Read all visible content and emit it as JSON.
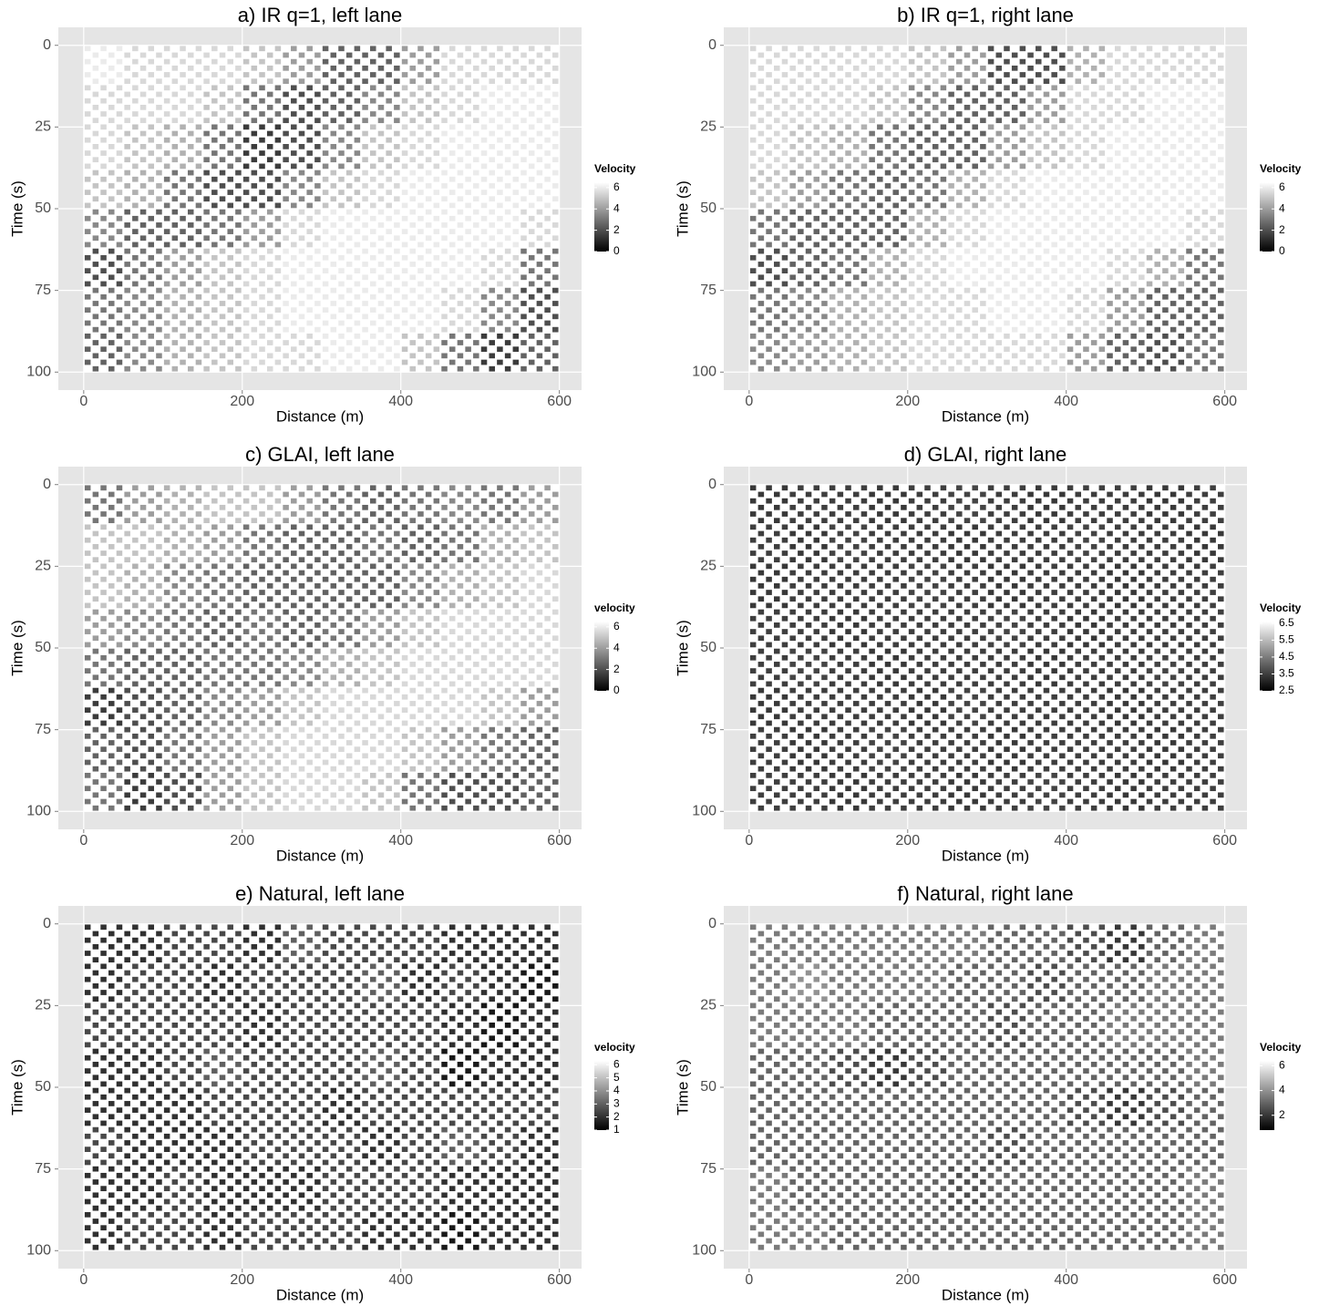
{
  "chart_data": [
    {
      "type": "heatmap",
      "title": "a) IR q=1, left lane",
      "xlabel": "Distance (m)",
      "ylabel": "Time (s)",
      "xlim": [
        -32,
        628
      ],
      "ylim": [
        -5.5,
        105.5
      ],
      "y_reversed": true,
      "xticks": [
        0,
        200,
        400,
        600
      ],
      "yticks": [
        0,
        25,
        50,
        75,
        100
      ],
      "grid": true,
      "x": [
        25,
        75,
        125,
        175,
        225,
        275,
        325,
        375,
        425,
        475,
        525,
        575
      ],
      "y": [
        6.25,
        18.75,
        31.25,
        43.75,
        56.25,
        68.75,
        81.25,
        93.75
      ],
      "values": [
        [
          6,
          5.5,
          5.5,
          5.5,
          5,
          4,
          2.5,
          2.5,
          4,
          5.5,
          5.5,
          5.5
        ],
        [
          5.5,
          5.5,
          5.5,
          5,
          3,
          2,
          2.5,
          3.5,
          5,
          5.5,
          6,
          6
        ],
        [
          5.5,
          5,
          4.5,
          3,
          1.5,
          2,
          3.5,
          5,
          5.5,
          6,
          6,
          6
        ],
        [
          5,
          4.5,
          3,
          2,
          2,
          3.5,
          5,
          5.5,
          6,
          6,
          6,
          6
        ],
        [
          3.5,
          2.5,
          2.5,
          3,
          4,
          5.5,
          6,
          6,
          6,
          6,
          6,
          5.5
        ],
        [
          2,
          3,
          4,
          5,
          5.5,
          6,
          6,
          6,
          6,
          6,
          5.5,
          3
        ],
        [
          3,
          3.5,
          4.5,
          5,
          5.5,
          6,
          6,
          6,
          6,
          5.5,
          3.5,
          2
        ],
        [
          2.5,
          3.5,
          4.5,
          5,
          5.5,
          5.5,
          6,
          6,
          5,
          3,
          1.5,
          2.5
        ]
      ],
      "legend_title": "Velocity",
      "legend_ticks": [
        0,
        2,
        4,
        6
      ],
      "color_range": [
        0,
        6.5
      ],
      "colors": [
        "#000000",
        "#ffffff"
      ]
    },
    {
      "type": "heatmap",
      "title": "b) IR q=1, right lane",
      "xlabel": "Distance (m)",
      "ylabel": "Time (s)",
      "xlim": [
        -32,
        628
      ],
      "ylim": [
        -5.5,
        105.5
      ],
      "y_reversed": true,
      "xticks": [
        0,
        200,
        400,
        600
      ],
      "yticks": [
        0,
        25,
        50,
        75,
        100
      ],
      "grid": true,
      "x": [
        25,
        75,
        125,
        175,
        225,
        275,
        325,
        375,
        425,
        475,
        525,
        575
      ],
      "y": [
        6.25,
        18.75,
        31.25,
        43.75,
        56.25,
        68.75,
        81.25,
        93.75
      ],
      "values": [
        [
          5.5,
          5.5,
          5.5,
          5.5,
          5,
          4,
          2,
          2,
          4.5,
          5.5,
          5.5,
          5.5
        ],
        [
          5.5,
          5.5,
          5.5,
          5,
          3.5,
          2.5,
          2.5,
          4,
          5.5,
          5.5,
          6,
          6
        ],
        [
          5.5,
          5,
          4.5,
          3,
          2.5,
          2.5,
          4,
          5,
          5.5,
          6,
          6,
          6
        ],
        [
          5,
          4,
          3,
          2.5,
          3,
          4.5,
          5.5,
          6,
          6,
          6,
          6,
          6
        ],
        [
          3,
          2.5,
          2.5,
          2.5,
          4.5,
          5.5,
          6,
          6,
          6,
          6,
          6,
          5.5
        ],
        [
          2,
          2.5,
          3,
          4.5,
          5.5,
          6,
          6,
          6,
          6,
          5.5,
          4.5,
          3
        ],
        [
          3,
          3.5,
          4.5,
          5,
          5.5,
          5.5,
          6,
          6,
          5.5,
          4,
          2.5,
          2.5
        ],
        [
          3.5,
          4,
          4.5,
          5,
          5.5,
          5.5,
          5.5,
          5.5,
          4,
          2.5,
          2,
          3
        ]
      ],
      "legend_title": "Velocity",
      "legend_ticks": [
        0,
        2,
        4,
        6
      ],
      "color_range": [
        0,
        6.5
      ],
      "colors": [
        "#000000",
        "#ffffff"
      ]
    },
    {
      "type": "heatmap",
      "title": "c) GLAI, left lane",
      "xlabel": "Distance (m)",
      "ylabel": "Time (s)",
      "xlim": [
        -32,
        628
      ],
      "ylim": [
        -5.5,
        105.5
      ],
      "y_reversed": true,
      "xticks": [
        0,
        200,
        400,
        600
      ],
      "yticks": [
        0,
        25,
        50,
        75,
        100
      ],
      "grid": true,
      "x": [
        25,
        75,
        125,
        175,
        225,
        275,
        325,
        375,
        425,
        475,
        525,
        575
      ],
      "y": [
        6.25,
        18.75,
        31.25,
        43.75,
        56.25,
        68.75,
        81.25,
        93.75
      ],
      "values": [
        [
          3,
          4,
          4.5,
          5,
          5,
          4,
          3,
          2.5,
          3,
          3.5,
          3,
          4
        ],
        [
          5,
          5,
          4.5,
          4,
          3,
          2.5,
          2.5,
          3,
          2.5,
          3,
          4.5,
          5
        ],
        [
          5,
          4.5,
          3.5,
          3,
          2.5,
          2.5,
          2.5,
          2.5,
          3.5,
          4.5,
          5,
          5.5
        ],
        [
          4,
          3.5,
          3,
          2.5,
          3,
          2.5,
          3,
          4,
          5,
          5.5,
          5.5,
          5.5
        ],
        [
          3,
          2.5,
          2.5,
          3,
          3,
          3.5,
          4.5,
          5,
          5.5,
          5.5,
          5.5,
          5.5
        ],
        [
          1.5,
          2,
          2.5,
          3.5,
          4,
          5,
          5.5,
          5.5,
          5.5,
          5.5,
          5,
          4
        ],
        [
          2.5,
          2,
          3,
          4,
          5,
          5.5,
          5.5,
          5.5,
          5,
          4,
          3,
          2.5
        ],
        [
          3,
          1.5,
          2,
          4,
          5,
          5.5,
          5.5,
          5,
          3,
          2,
          2,
          2.5
        ]
      ],
      "legend_title": "velocity",
      "legend_ticks": [
        0,
        2,
        4,
        6
      ],
      "color_range": [
        0,
        6.5
      ],
      "colors": [
        "#000000",
        "#ffffff"
      ]
    },
    {
      "type": "heatmap",
      "title": "d) GLAI, right lane",
      "xlabel": "Distance (m)",
      "ylabel": "Time (s)",
      "xlim": [
        -32,
        628
      ],
      "ylim": [
        -5.5,
        105.5
      ],
      "y_reversed": true,
      "xticks": [
        0,
        200,
        400,
        600
      ],
      "yticks": [
        0,
        25,
        50,
        75,
        100
      ],
      "grid": true,
      "x": [
        25,
        75,
        125,
        175,
        225,
        275,
        325,
        375,
        425,
        475,
        525,
        575
      ],
      "y": [
        6.25,
        18.75,
        31.25,
        43.75,
        56.25,
        68.75,
        81.25,
        93.75
      ],
      "values": [
        [
          3.4,
          3.5,
          3.5,
          3.4,
          3.5,
          3.6,
          3.5,
          3.4,
          3.5,
          3.5,
          3.4,
          3.5
        ],
        [
          3.5,
          3.4,
          3.6,
          3.5,
          3.5,
          3.4,
          3.5,
          3.5,
          3.6,
          3.5,
          3.5,
          3.4
        ],
        [
          3.4,
          3.5,
          3.5,
          3.5,
          3.6,
          3.5,
          3.4,
          3.5,
          3.5,
          3.4,
          3.5,
          3.5
        ],
        [
          3.5,
          3.5,
          3.4,
          3.5,
          3.5,
          3.5,
          3.6,
          3.5,
          3.4,
          3.5,
          3.5,
          3.5
        ],
        [
          3.5,
          3.6,
          3.5,
          3.4,
          3.5,
          3.5,
          3.5,
          3.4,
          3.5,
          3.5,
          3.6,
          3.5
        ],
        [
          3.4,
          3.5,
          3.5,
          3.5,
          3.4,
          3.6,
          3.5,
          3.5,
          3.5,
          3.4,
          3.5,
          3.5
        ],
        [
          3.5,
          3.4,
          3.5,
          3.6,
          3.5,
          3.5,
          3.4,
          3.5,
          3.5,
          3.5,
          3.4,
          3.5
        ],
        [
          3.5,
          3.5,
          3.4,
          3.5,
          3.5,
          3.4,
          3.5,
          3.6,
          3.5,
          3.4,
          3.5,
          3.5
        ]
      ],
      "legend_title": "Velocity",
      "legend_ticks": [
        2.5,
        3.5,
        4.5,
        5.5,
        6.5
      ],
      "color_range": [
        2.5,
        6.6
      ],
      "colors": [
        "#000000",
        "#ffffff"
      ]
    },
    {
      "type": "heatmap",
      "title": "e) Natural, left lane",
      "xlabel": "Distance (m)",
      "ylabel": "Time (s)",
      "xlim": [
        -32,
        628
      ],
      "ylim": [
        -5.5,
        105.5
      ],
      "y_reversed": true,
      "xticks": [
        0,
        200,
        400,
        600
      ],
      "yticks": [
        0,
        25,
        50,
        75,
        100
      ],
      "grid": true,
      "x": [
        25,
        75,
        125,
        175,
        225,
        275,
        325,
        375,
        425,
        475,
        525,
        575
      ],
      "y": [
        6.25,
        18.75,
        31.25,
        43.75,
        56.25,
        68.75,
        81.25,
        93.75
      ],
      "values": [
        [
          2,
          2,
          2.5,
          2.5,
          2,
          3,
          2.5,
          2.5,
          2.5,
          2,
          2,
          2
        ],
        [
          2,
          2.5,
          2.5,
          2,
          2.5,
          2.5,
          2.5,
          3,
          2,
          2.5,
          2,
          1.5
        ],
        [
          2.5,
          2.5,
          2.5,
          2.5,
          2,
          2.5,
          2.5,
          2.5,
          2.5,
          2,
          1.5,
          2
        ],
        [
          2,
          2,
          2.5,
          3,
          2.5,
          2.5,
          2.5,
          3,
          2.5,
          1.5,
          2,
          2
        ],
        [
          2,
          2,
          2,
          2.5,
          2.5,
          2.5,
          2,
          2.5,
          2.5,
          2.5,
          2.5,
          2.5
        ],
        [
          2.5,
          2,
          2,
          2,
          2.5,
          2.5,
          2.5,
          2,
          2.5,
          3,
          2.5,
          2
        ],
        [
          2,
          2,
          2.5,
          2,
          2,
          2,
          2.5,
          2.5,
          2.5,
          2,
          2,
          2
        ],
        [
          2,
          2.5,
          2.5,
          2,
          2.5,
          2.5,
          2.5,
          2,
          2,
          1.5,
          2,
          2
        ]
      ],
      "legend_title": "velocity",
      "legend_ticks": [
        1,
        2,
        3,
        4,
        5,
        6
      ],
      "color_range": [
        1,
        6.3
      ],
      "colors": [
        "#000000",
        "#ffffff"
      ]
    },
    {
      "type": "heatmap",
      "title": "f) Natural, right lane",
      "xlabel": "Distance (m)",
      "ylabel": "Time (s)",
      "xlim": [
        -32,
        628
      ],
      "ylim": [
        -5.5,
        105.5
      ],
      "y_reversed": true,
      "xticks": [
        0,
        200,
        400,
        600
      ],
      "yticks": [
        0,
        25,
        50,
        75,
        100
      ],
      "grid": true,
      "x": [
        25,
        75,
        125,
        175,
        225,
        275,
        325,
        375,
        425,
        475,
        525,
        575
      ],
      "y": [
        6.25,
        18.75,
        31.25,
        43.75,
        56.25,
        68.75,
        81.25,
        93.75
      ],
      "values": [
        [
          3.5,
          3.5,
          3.5,
          3.5,
          3.5,
          3.5,
          3,
          3,
          2.5,
          2,
          3,
          3.5
        ],
        [
          3.5,
          4,
          3.5,
          3.5,
          3.5,
          3,
          3,
          2.5,
          3,
          3,
          3.5,
          3.5
        ],
        [
          3.5,
          3.5,
          3.5,
          3,
          3,
          3,
          2.5,
          3,
          3,
          3.5,
          3.5,
          3.5
        ],
        [
          3,
          3,
          2.5,
          2,
          2.5,
          3,
          3,
          3,
          3,
          3,
          3,
          3.5
        ],
        [
          3,
          3,
          3,
          3,
          3,
          3,
          3,
          3,
          2.5,
          2,
          2.5,
          3
        ],
        [
          3,
          3,
          3,
          3,
          3,
          3,
          2.5,
          3,
          3,
          3,
          3,
          3
        ],
        [
          3.5,
          3,
          3,
          3,
          3,
          2.5,
          3,
          3,
          3,
          3,
          3,
          3.5
        ],
        [
          3.5,
          3.5,
          3,
          3,
          3,
          3,
          3,
          3,
          3,
          3,
          3,
          3.5
        ]
      ],
      "legend_title": "Velocity",
      "legend_ticks": [
        2,
        4,
        6
      ],
      "color_range": [
        0.8,
        6.4
      ],
      "colors": [
        "#000000",
        "#ffffff"
      ]
    }
  ]
}
